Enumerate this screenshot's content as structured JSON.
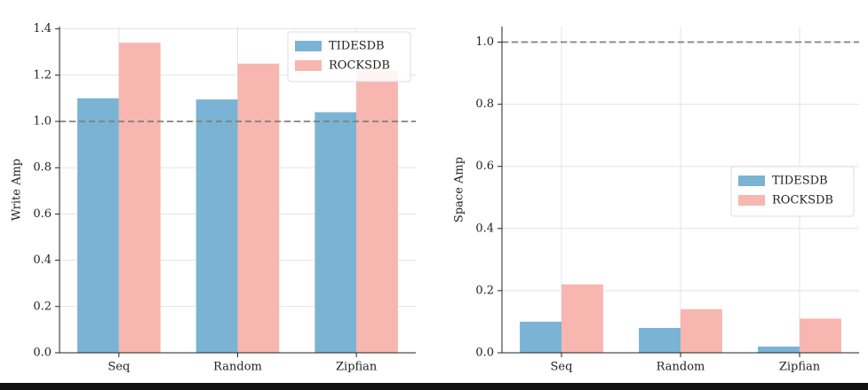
{
  "chart_data": [
    {
      "type": "bar",
      "ylabel": "Write Amp",
      "categories": [
        "Seq",
        "Random",
        "Zipfian"
      ],
      "series": [
        {
          "name": "TIDESDB",
          "color": "#7ab3d4",
          "values": [
            1.1,
            1.095,
            1.04
          ]
        },
        {
          "name": "ROCKSDB",
          "color": "#f7b6b0",
          "values": [
            1.34,
            1.25,
            1.22
          ]
        }
      ],
      "ylim": [
        0,
        1.41
      ],
      "yticks": [
        {
          "value": 0,
          "label": "0.0"
        },
        {
          "value": 0.2,
          "label": "0.2"
        },
        {
          "value": 0.4,
          "label": "0.4"
        },
        {
          "value": 0.6,
          "label": "0.6"
        },
        {
          "value": 0.8,
          "label": "0.8"
        },
        {
          "value": 1.0,
          "label": "1.0"
        },
        {
          "value": 1.2,
          "label": "1.2"
        },
        {
          "value": 1.4,
          "label": "1.4"
        }
      ],
      "reference_line": 1.0,
      "grid": true,
      "legend": "upper right"
    },
    {
      "type": "bar",
      "ylabel": "Space Amp",
      "categories": [
        "Seq",
        "Random",
        "Zipfian"
      ],
      "series": [
        {
          "name": "TIDESDB",
          "color": "#7ab3d4",
          "values": [
            0.1,
            0.08,
            0.02
          ]
        },
        {
          "name": "ROCKSDB",
          "color": "#f7b6b0",
          "values": [
            0.22,
            0.14,
            0.11
          ]
        }
      ],
      "ylim": [
        0,
        1.05
      ],
      "yticks": [
        {
          "value": 0,
          "label": "0.0"
        },
        {
          "value": 0.2,
          "label": "0.2"
        },
        {
          "value": 0.4,
          "label": "0.4"
        },
        {
          "value": 0.6,
          "label": "0.6"
        },
        {
          "value": 0.8,
          "label": "0.8"
        },
        {
          "value": 1.0,
          "label": "1.0"
        }
      ],
      "reference_line": 1.0,
      "grid": true,
      "legend": "center right"
    }
  ]
}
